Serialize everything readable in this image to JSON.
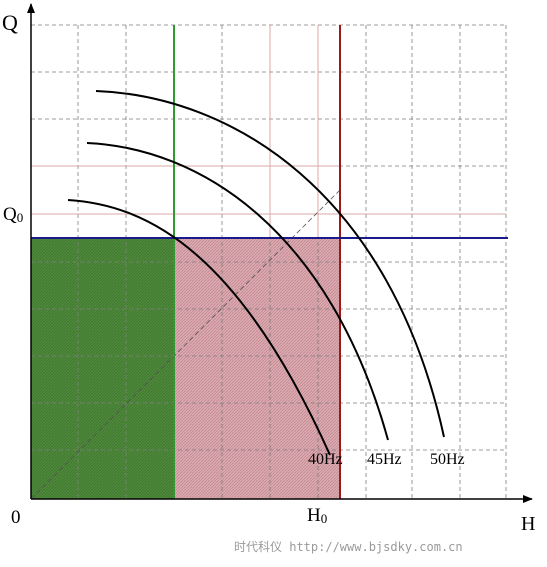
{
  "axes": {
    "y_label": "Q",
    "x_label": "H",
    "origin_label": "0",
    "q0_label": "Q0",
    "h0_label": "H0"
  },
  "curves": [
    {
      "label": "40Hz"
    },
    {
      "label": "45Hz"
    },
    {
      "label": "50Hz"
    }
  ],
  "colors": {
    "green_fill": "#4e8a3a",
    "green_line": "#2f9a2f",
    "red_fill": "#d8a4ab",
    "red_line": "#9a1a1a",
    "blue_line": "#1a1a8c",
    "grid": "#7f7f7f",
    "pink_grid": "#d9a8a8"
  },
  "watermark": "时代科仪 http://www.bjsdky.com.cn"
}
